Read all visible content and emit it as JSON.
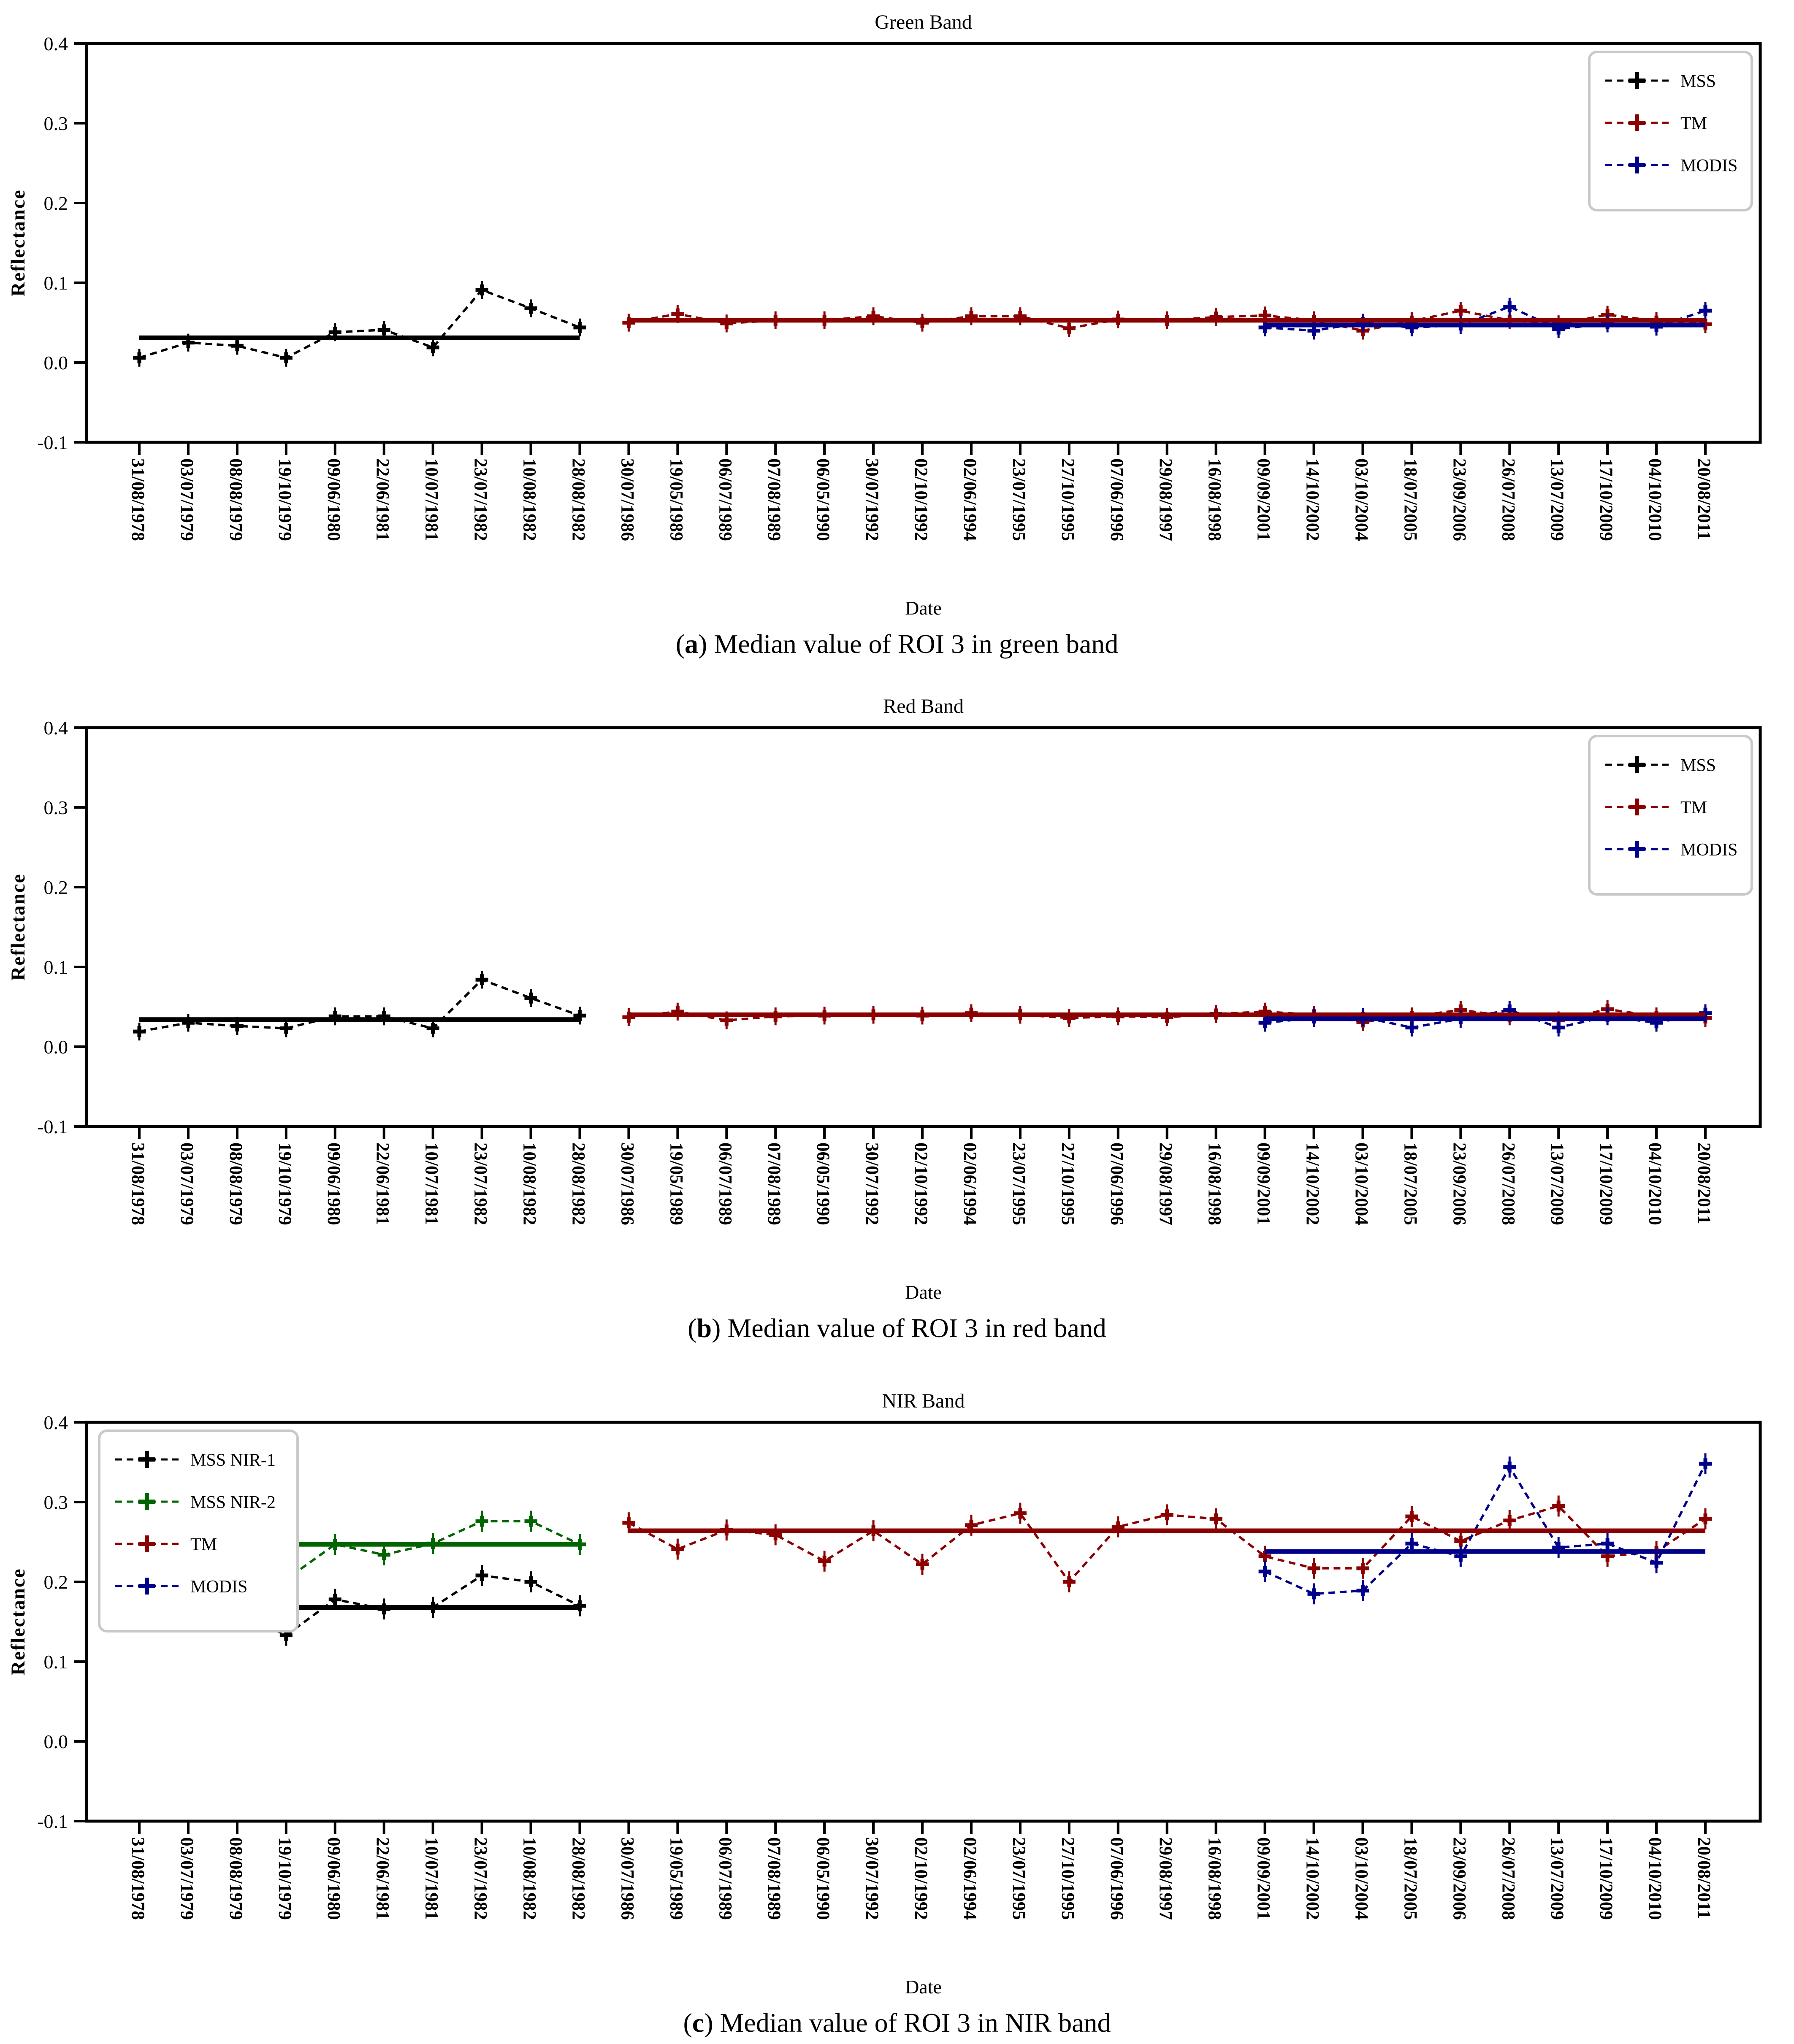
{
  "figure": {
    "description": "Three stacked line charts comparing satellite sensor reflectance time series",
    "colors": {
      "mss": "#000000",
      "mss_nir2": "#006400",
      "tm": "#8B0000",
      "modis": "#00008B",
      "legend_border": "#c9c9c9",
      "axis": "#000000"
    }
  },
  "chart_data": [
    {
      "id": "a",
      "type": "line",
      "title": "Green Band",
      "xlabel": "Date",
      "ylabel": "Reflectance",
      "caption_letter": "a",
      "caption_text": "Median value of ROI 3 in green band",
      "ylim": [
        -0.1,
        0.4
      ],
      "y_ticks": [
        "0.4",
        "0.3",
        "0.2",
        "0.1",
        "0.0",
        "-0.1"
      ],
      "grid": false,
      "legend_position": "top-right",
      "categories": [
        "31/08/1978",
        "03/07/1979",
        "08/08/1979",
        "19/10/1979",
        "09/06/1980",
        "22/06/1981",
        "10/07/1981",
        "23/07/1982",
        "10/08/1982",
        "28/08/1982",
        "30/07/1986",
        "19/05/1989",
        "06/07/1989",
        "07/08/1989",
        "06/05/1990",
        "30/07/1992",
        "02/10/1992",
        "02/06/1994",
        "23/07/1995",
        "27/10/1995",
        "07/06/1996",
        "29/08/1997",
        "16/08/1998",
        "09/09/2001",
        "14/10/2002",
        "03/10/2004",
        "18/07/2005",
        "23/09/2006",
        "26/07/2008",
        "13/07/2009",
        "17/10/2009",
        "04/10/2010",
        "20/08/2011"
      ],
      "series": [
        {
          "name": "MSS",
          "color": "#000000",
          "start_index": 0,
          "err": 0.008,
          "median_line": 0.031,
          "values": [
            0.006,
            0.025,
            0.021,
            0.006,
            0.038,
            0.041,
            0.019,
            0.091,
            0.068,
            0.044
          ]
        },
        {
          "name": "TM",
          "color": "#8B0000",
          "start_index": 10,
          "err": 0.008,
          "median_line": 0.053,
          "values": [
            0.05,
            0.061,
            0.049,
            0.053,
            0.053,
            0.058,
            0.05,
            0.058,
            0.058,
            0.043,
            0.054,
            0.053,
            0.057,
            0.059,
            0.053,
            0.04,
            0.052,
            0.065,
            0.053,
            0.048,
            0.06,
            0.052,
            0.048
          ]
        },
        {
          "name": "MODIS",
          "color": "#00008B",
          "start_index": 23,
          "err": 0.008,
          "median_line": 0.047,
          "values": [
            0.044,
            0.04,
            0.05,
            0.044,
            0.047,
            0.07,
            0.042,
            0.049,
            0.045,
            0.065
          ]
        }
      ]
    },
    {
      "id": "b",
      "type": "line",
      "title": "Red Band",
      "xlabel": "Date",
      "ylabel": "Reflectance",
      "caption_letter": "b",
      "caption_text": "Median value of ROI 3 in red band",
      "ylim": [
        -0.1,
        0.4
      ],
      "y_ticks": [
        "0.4",
        "0.3",
        "0.2",
        "0.1",
        "0.0",
        "-0.1"
      ],
      "grid": false,
      "legend_position": "top-right",
      "categories": [
        "31/08/1978",
        "03/07/1979",
        "08/08/1979",
        "19/10/1979",
        "09/06/1980",
        "22/06/1981",
        "10/07/1981",
        "23/07/1982",
        "10/08/1982",
        "28/08/1982",
        "30/07/1986",
        "19/05/1989",
        "06/07/1989",
        "07/08/1989",
        "06/05/1990",
        "30/07/1992",
        "02/10/1992",
        "02/06/1994",
        "23/07/1995",
        "27/10/1995",
        "07/06/1996",
        "29/08/1997",
        "16/08/1998",
        "09/09/2001",
        "14/10/2002",
        "03/10/2004",
        "18/07/2005",
        "23/09/2006",
        "26/07/2008",
        "13/07/2009",
        "17/10/2009",
        "04/10/2010",
        "20/08/2011"
      ],
      "series": [
        {
          "name": "MSS",
          "color": "#000000",
          "start_index": 0,
          "err": 0.008,
          "median_line": 0.034,
          "values": [
            0.019,
            0.03,
            0.026,
            0.023,
            0.038,
            0.038,
            0.023,
            0.084,
            0.061,
            0.039
          ]
        },
        {
          "name": "TM",
          "color": "#8B0000",
          "start_index": 10,
          "err": 0.008,
          "median_line": 0.04,
          "values": [
            0.037,
            0.044,
            0.033,
            0.038,
            0.039,
            0.04,
            0.039,
            0.042,
            0.04,
            0.036,
            0.038,
            0.037,
            0.041,
            0.044,
            0.04,
            0.031,
            0.038,
            0.046,
            0.038,
            0.033,
            0.047,
            0.038,
            0.036
          ]
        },
        {
          "name": "MODIS",
          "color": "#00008B",
          "start_index": 23,
          "err": 0.008,
          "median_line": 0.035,
          "values": [
            0.03,
            0.036,
            0.037,
            0.024,
            0.035,
            0.046,
            0.024,
            0.038,
            0.03,
            0.042
          ]
        }
      ]
    },
    {
      "id": "c",
      "type": "line",
      "title": "NIR Band",
      "xlabel": "Date",
      "ylabel": "Reflectance",
      "caption_letter": "c",
      "caption_text": "Median value of ROI 3 in NIR band",
      "ylim": [
        -0.1,
        0.4
      ],
      "y_ticks": [
        "0.4",
        "0.3",
        "0.2",
        "0.1",
        "0.0",
        "-0.1"
      ],
      "grid": false,
      "legend_position": "top-left",
      "categories": [
        "31/08/1978",
        "03/07/1979",
        "08/08/1979",
        "19/10/1979",
        "09/06/1980",
        "22/06/1981",
        "10/07/1981",
        "23/07/1982",
        "10/08/1982",
        "28/08/1982",
        "30/07/1986",
        "19/05/1989",
        "06/07/1989",
        "07/08/1989",
        "06/05/1990",
        "30/07/1992",
        "02/10/1992",
        "02/06/1994",
        "23/07/1995",
        "27/10/1995",
        "07/06/1996",
        "29/08/1997",
        "16/08/1998",
        "09/09/2001",
        "14/10/2002",
        "03/10/2004",
        "18/07/2005",
        "23/09/2006",
        "26/07/2008",
        "13/07/2009",
        "17/10/2009",
        "04/10/2010",
        "20/08/2011"
      ],
      "series": [
        {
          "name": "MSS NIR-1",
          "color": "#000000",
          "start_index": 0,
          "err": 0.01,
          "median_line": 0.168,
          "values": [
            0.152,
            0.182,
            0.163,
            0.133,
            0.178,
            0.166,
            0.168,
            0.208,
            0.2,
            0.17
          ]
        },
        {
          "name": "MSS NIR-2",
          "color": "#006400",
          "start_index": 0,
          "err": 0.01,
          "median_line": 0.247,
          "values": [
            0.228,
            0.258,
            0.247,
            0.203,
            0.247,
            0.234,
            0.248,
            0.276,
            0.276,
            0.247
          ]
        },
        {
          "name": "TM",
          "color": "#8B0000",
          "start_index": 10,
          "err": 0.01,
          "median_line": 0.264,
          "values": [
            0.274,
            0.241,
            0.265,
            0.259,
            0.226,
            0.264,
            0.222,
            0.271,
            0.286,
            0.2,
            0.269,
            0.284,
            0.279,
            0.232,
            0.217,
            0.217,
            0.282,
            0.251,
            0.277,
            0.295,
            0.232,
            0.238,
            0.279
          ]
        },
        {
          "name": "MODIS",
          "color": "#00008B",
          "start_index": 23,
          "err": 0.01,
          "median_line": 0.238,
          "values": [
            0.213,
            0.185,
            0.189,
            0.248,
            0.232,
            0.344,
            0.243,
            0.248,
            0.224,
            0.348
          ]
        }
      ]
    }
  ]
}
